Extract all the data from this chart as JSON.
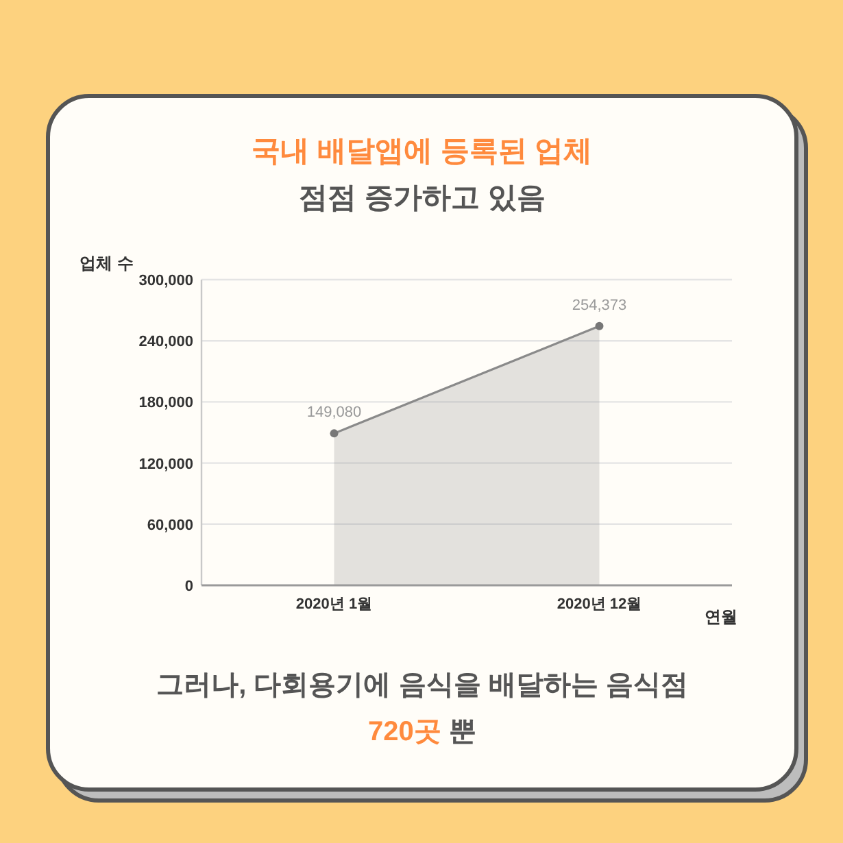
{
  "chart_data": {
    "type": "area",
    "title": "국내 배달앱에 등록된 업체",
    "subtitle": "점점 증가하고 있음",
    "ylabel": "업체 수",
    "xlabel": "연월",
    "categories": [
      "2020년 1월",
      "2020년 12월"
    ],
    "series": [
      {
        "color": "#8a8a8a",
        "values": [
          149080,
          254373
        ],
        "value_labels": [
          "149,080",
          "254,373"
        ]
      }
    ],
    "ylim": [
      0,
      300000
    ],
    "yticks": [
      0,
      {
        "value": 60000,
        "label": "60,000"
      },
      {
        "value": 120000,
        "label": "120,000"
      },
      {
        "value": 180000,
        "label": "180,000"
      },
      {
        "value": 240000,
        "label": "240,000"
      },
      {
        "value": 300000,
        "label": "300,000"
      }
    ],
    "grid": "y",
    "marker": "circle",
    "annotations": [
      "그러나, 다회용기에 음식을 배달하는 음식점",
      "720곳 뿐"
    ]
  }
}
